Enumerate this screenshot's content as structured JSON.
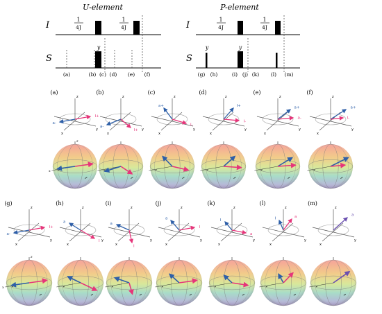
{
  "u_element": {
    "title": "U-element",
    "row_i": "I",
    "row_s": "S",
    "delay1": {
      "num": "1",
      "den": "4J"
    },
    "delay2": {
      "num": "1",
      "den": "4J"
    },
    "pulse_y": "y",
    "markers": [
      "(a)",
      "(b)",
      "(c)",
      "(d)",
      "(e)",
      "(f)"
    ]
  },
  "p_element": {
    "title": "P-element",
    "row_i": "I",
    "row_s": "S",
    "delay1": {
      "num": "1",
      "den": "4J"
    },
    "delay2": {
      "num": "1",
      "den": "4J"
    },
    "pulse_y_s": "y",
    "pulse_y_i": "y",
    "markers": [
      "(g)",
      "(h)",
      "(i)",
      "(j)",
      "(k)",
      "(l)",
      "(m)"
    ]
  },
  "panels_top": [
    {
      "label": "(a)",
      "arrows": [
        "a-",
        "I+"
      ]
    },
    {
      "label": "(b)",
      "arrows": [
        "a-",
        "I+"
      ]
    },
    {
      "label": "(c)",
      "arrows": [
        "a+",
        "I-"
      ]
    },
    {
      "label": "(d)",
      "arrows": [
        "I+",
        "I-"
      ]
    },
    {
      "label": "(e)",
      "arrows": [
        "a+",
        "a-"
      ]
    },
    {
      "label": "(f)",
      "arrows": [
        "a+",
        "I-"
      ]
    }
  ],
  "panels_bottom": [
    {
      "label": "(g)",
      "arrows": [
        "a-",
        "I+"
      ]
    },
    {
      "label": "(h)",
      "arrows": [
        "a",
        "I"
      ]
    },
    {
      "label": "(i)",
      "arrows": [
        "a",
        "I"
      ]
    },
    {
      "label": "(j)",
      "arrows": [
        "a",
        "I"
      ]
    },
    {
      "label": "(k)",
      "arrows": [
        "I",
        "a"
      ]
    },
    {
      "label": "(l)",
      "arrows": [
        "I",
        "a"
      ]
    },
    {
      "label": "(m)",
      "arrows": [
        "a",
        ""
      ]
    }
  ],
  "axes": {
    "x": "x",
    "y": "y",
    "z": "z"
  },
  "colors": {
    "blue": "#2e5fa8",
    "pink": "#e6357a",
    "purple": "#6a4fb0",
    "line": "#555555",
    "pulse": "#000000"
  }
}
